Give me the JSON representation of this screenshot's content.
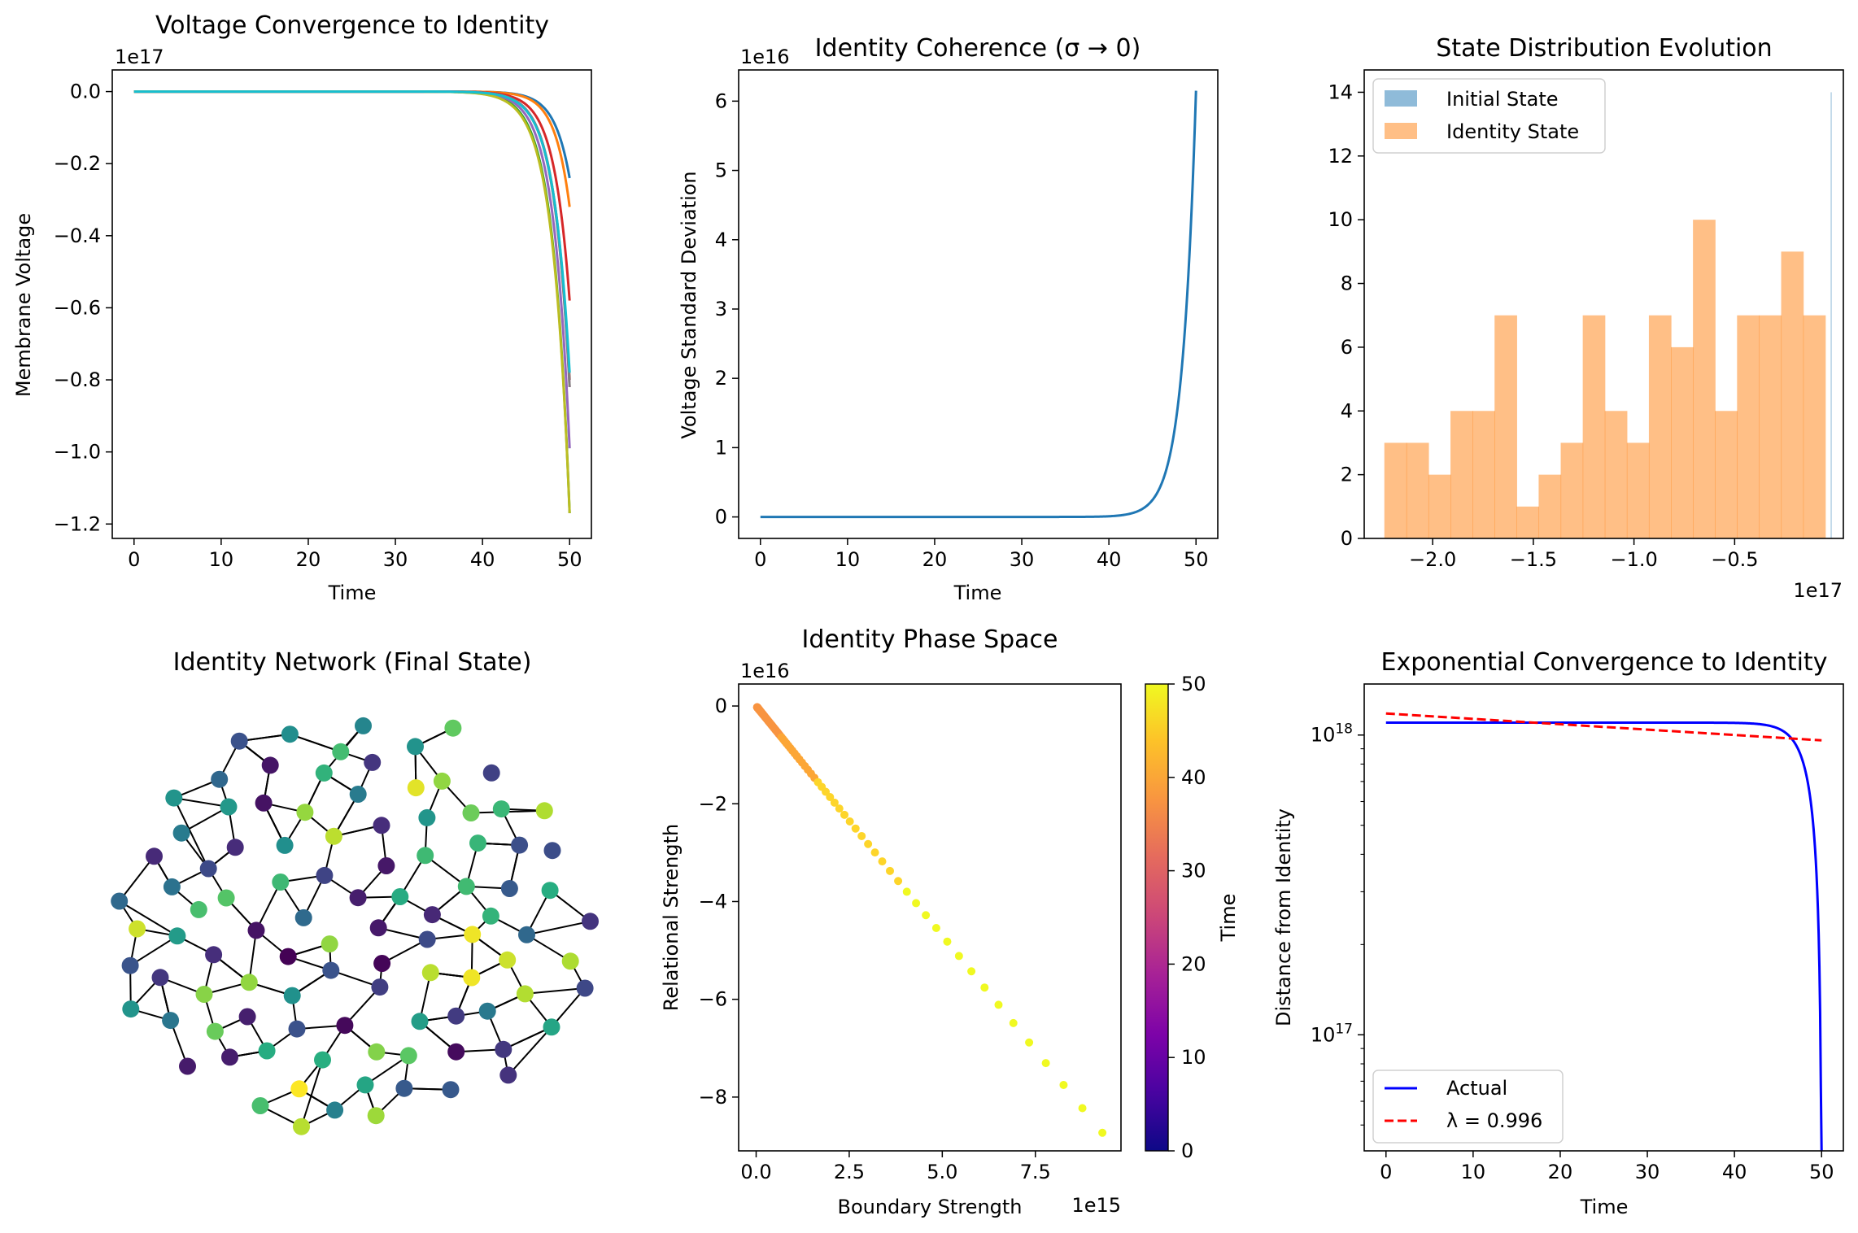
{
  "chart_data": [
    {
      "type": "line",
      "title": "Voltage Convergence to Identity",
      "xlabel": "Time",
      "ylabel": "Membrane Voltage",
      "offset_label": "1e17",
      "xlim": [
        -2.5,
        52.5
      ],
      "ylim": [
        -1.24,
        0.06
      ],
      "xticks": [
        0,
        10,
        20,
        30,
        40,
        50
      ],
      "xticklabels": [
        "0",
        "10",
        "20",
        "30",
        "40",
        "50"
      ],
      "yticks": [
        0.0,
        -0.2,
        -0.4,
        -0.6,
        -0.8,
        -1.0,
        -1.2
      ],
      "yticklabels": [
        "0.0",
        "−0.2",
        "−0.4",
        "−0.6",
        "−0.8",
        "−1.0",
        "−1.2"
      ],
      "grid": false,
      "series": [
        {
          "color": "#1f77b4",
          "final": -0.24,
          "tau": 1.75
        },
        {
          "color": "#ff7f0e",
          "final": -0.32,
          "tau": 1.7
        },
        {
          "color": "#2ca02c",
          "final": -1.17,
          "tau": 1.9
        },
        {
          "color": "#d62728",
          "final": -0.58,
          "tau": 1.8
        },
        {
          "color": "#9467bd",
          "final": -0.99,
          "tau": 1.85
        },
        {
          "color": "#8c564b",
          "final": -0.8,
          "tau": 1.8
        },
        {
          "color": "#e377c2",
          "final": -0.82,
          "tau": 1.8
        },
        {
          "color": "#7f7f7f",
          "final": -0.82,
          "tau": 1.8
        },
        {
          "color": "#bcbd22",
          "final": -1.17,
          "tau": 1.95
        },
        {
          "color": "#17becf",
          "final": -0.78,
          "tau": 1.85
        }
      ]
    },
    {
      "type": "line",
      "title": "Identity Coherence (σ → 0)",
      "xlabel": "Time",
      "ylabel": "Voltage Standard Deviation",
      "offset_label": "1e16",
      "xlim": [
        -2.5,
        52.5
      ],
      "ylim": [
        -0.31,
        6.45
      ],
      "xticks": [
        0,
        10,
        20,
        30,
        40,
        50
      ],
      "xticklabels": [
        "0",
        "10",
        "20",
        "30",
        "40",
        "50"
      ],
      "yticks": [
        0,
        1,
        2,
        3,
        4,
        5,
        6
      ],
      "yticklabels": [
        "0",
        "1",
        "2",
        "3",
        "4",
        "5",
        "6"
      ],
      "grid": false,
      "series": [
        {
          "color": "#1f77b4",
          "final": 6.15,
          "tau": 1.55
        }
      ]
    },
    {
      "type": "bar",
      "title": "State Distribution Evolution",
      "offset_label": "1e17",
      "xlim": [
        -2.34,
        0.04
      ],
      "ylim": [
        0,
        14.7
      ],
      "xticks": [
        -2.0,
        -1.5,
        -1.0,
        -0.5
      ],
      "xticklabels": [
        "−2.0",
        "−1.5",
        "−1.0",
        "−0.5"
      ],
      "yticks": [
        0,
        2,
        4,
        6,
        8,
        10,
        12,
        14
      ],
      "yticklabels": [
        "0",
        "2",
        "4",
        "6",
        "8",
        "10",
        "12",
        "14"
      ],
      "legend": "top-left",
      "legend_entries": [
        "Initial State",
        "Identity State"
      ],
      "colors": {
        "initial": "#1f77b4",
        "identity": "#ff7f0e"
      },
      "initial_bin": {
        "left": -0.0225,
        "right": -0.0215,
        "value": 14
      },
      "bin_left": -2.24,
      "bin_width": 0.1095,
      "values": [
        3,
        3,
        2,
        4,
        4,
        7,
        1,
        2,
        3,
        7,
        4,
        3,
        7,
        6,
        10,
        4,
        7,
        7,
        9,
        7
      ]
    },
    {
      "type": "network",
      "title": "Identity Network (Final State)",
      "colormap": "viridis"
    },
    {
      "type": "scatter",
      "title": "Identity Phase Space",
      "xlabel": "Boundary Strength",
      "ylabel": "Relational Strength",
      "x_offset_label": "1e15",
      "y_offset_label": "1e16",
      "xlim": [
        -0.47,
        9.8
      ],
      "ylim": [
        -9.1,
        0.45
      ],
      "xticks": [
        0.0,
        2.5,
        5.0,
        7.5
      ],
      "xticklabels": [
        "0.0",
        "2.5",
        "5.0",
        "7.5"
      ],
      "yticks": [
        0,
        -2,
        -4,
        -6,
        -8
      ],
      "yticklabels": [
        "0",
        "−2",
        "−4",
        "−6",
        "−8"
      ],
      "colormap": "plasma",
      "colorbar_label": "Time",
      "colorbar_range": [
        0,
        50
      ],
      "colorbar_ticks": [
        0,
        10,
        20,
        30,
        40,
        50
      ],
      "colorbar_ticklabels": [
        "0",
        "10",
        "20",
        "30",
        "40",
        "50"
      ],
      "endpoint": [
        9.3,
        -8.73
      ],
      "n_points": 100
    },
    {
      "type": "line",
      "title": "Exponential Convergence to Identity",
      "xlabel": "Time",
      "ylabel": "Distance from Identity",
      "yscale": "log",
      "xlim": [
        -2.5,
        52.5
      ],
      "ylim": [
        4.1e+16,
        1.48e+18
      ],
      "xticks": [
        0,
        10,
        20,
        30,
        40,
        50
      ],
      "xticklabels": [
        "0",
        "10",
        "20",
        "30",
        "40",
        "50"
      ],
      "yticks_major": [
        1e+17,
        1e+18
      ],
      "ytick_base": [
        "10",
        "10"
      ],
      "ytick_exp": [
        "17",
        "18"
      ],
      "legend": "lower-left",
      "legend_entries": [
        "Actual",
        "λ = 0.996"
      ],
      "series": [
        {
          "name": "Actual",
          "color": "#0000ff",
          "style": "solid",
          "start": 1.1e+18
        },
        {
          "name": "λ = 0.996",
          "color": "#ff0000",
          "style": "dashed",
          "start": 1.18e+18,
          "end": 9.6e+17
        }
      ]
    }
  ]
}
